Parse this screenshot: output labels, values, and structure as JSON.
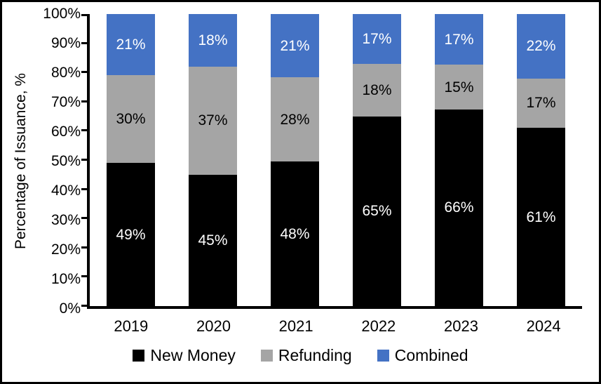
{
  "window": {
    "background": "#FFFFFF",
    "frame_border_color": "#000000"
  },
  "chart_data": {
    "type": "bar",
    "stacked": true,
    "title": "",
    "xlabel": "",
    "ylabel": "Percentage of Issuance, %",
    "ylim": [
      0,
      100
    ],
    "y_ticks": [
      "0%",
      "10%",
      "20%",
      "30%",
      "40%",
      "50%",
      "60%",
      "70%",
      "80%",
      "90%",
      "100%"
    ],
    "grid": "off",
    "legend_position": "bottom",
    "categories": [
      "2019",
      "2020",
      "2021",
      "2022",
      "2023",
      "2024"
    ],
    "series": [
      {
        "name": "New Money",
        "color": "#000000",
        "label_color": "#FFFFFF",
        "values": [
          49,
          45,
          48,
          65,
          66,
          61
        ]
      },
      {
        "name": "Refunding",
        "color": "#A5A5A5",
        "label_color": "#000000",
        "values": [
          30,
          37,
          28,
          18,
          15,
          17
        ]
      },
      {
        "name": "Combined",
        "color": "#4472C4",
        "label_color": "#FFFFFF",
        "values": [
          21,
          18,
          21,
          17,
          17,
          22
        ]
      }
    ],
    "data_label_suffix": "%",
    "axis_color": "#000000"
  }
}
